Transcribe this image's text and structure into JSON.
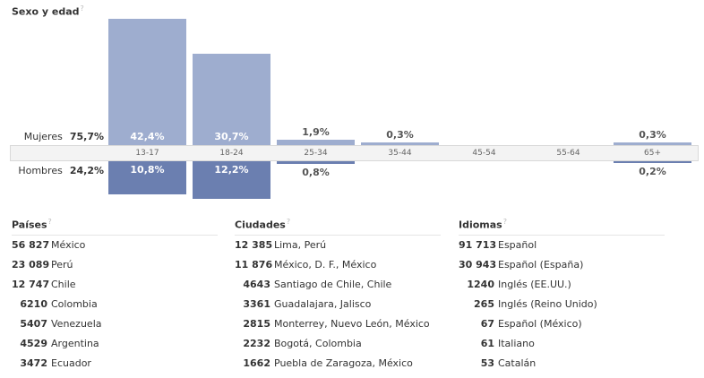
{
  "title": "Sexo y edad",
  "help_mark": "?",
  "women": {
    "label": "Mujeres",
    "pct": "75,7%"
  },
  "men": {
    "label": "Hombres",
    "pct": "24,2%"
  },
  "chart_data": {
    "type": "bar",
    "title": "Sexo y edad",
    "categories": [
      "13-17",
      "18-24",
      "25-34",
      "35-44",
      "45-54",
      "55-64",
      "65+"
    ],
    "series": [
      {
        "name": "Mujeres",
        "values": [
          42.4,
          30.7,
          1.9,
          0.3,
          0,
          0,
          0.3
        ],
        "labels": [
          "42,4%",
          "30,7%",
          "1,9%",
          "0,3%",
          "",
          "",
          "0,3%"
        ]
      },
      {
        "name": "Hombres",
        "values": [
          10.8,
          12.2,
          0.8,
          0,
          0,
          0,
          0.2
        ],
        "labels": [
          "10,8%",
          "12,2%",
          "0,8%",
          "",
          "",
          "",
          "0,2%"
        ]
      }
    ],
    "colors": {
      "women": "#9eadcf",
      "men": "#6b7fb0"
    }
  },
  "countries": {
    "header": "Países",
    "rows": [
      {
        "count": "56 827",
        "name": "México"
      },
      {
        "count": "23 089",
        "name": "Perú"
      },
      {
        "count": "12 747",
        "name": "Chile"
      },
      {
        "count": "6210",
        "name": "Colombia"
      },
      {
        "count": "5407",
        "name": "Venezuela"
      },
      {
        "count": "4529",
        "name": "Argentina"
      },
      {
        "count": "3472",
        "name": "Ecuador"
      }
    ]
  },
  "cities": {
    "header": "Ciudades",
    "rows": [
      {
        "count": "12 385",
        "name": "Lima, Perú"
      },
      {
        "count": "11 876",
        "name": "México, D. F., México"
      },
      {
        "count": "4643",
        "name": "Santiago de Chile, Chile"
      },
      {
        "count": "3361",
        "name": "Guadalajara, Jalisco"
      },
      {
        "count": "2815",
        "name": "Monterrey, Nuevo León, México"
      },
      {
        "count": "2232",
        "name": "Bogotá, Colombia"
      },
      {
        "count": "1662",
        "name": "Puebla de Zaragoza, México"
      }
    ]
  },
  "languages": {
    "header": "Idiomas",
    "rows": [
      {
        "count": "91 713",
        "name": "Español"
      },
      {
        "count": "30 943",
        "name": "Español (España)"
      },
      {
        "count": "1240",
        "name": "Inglés (EE.UU.)"
      },
      {
        "count": "265",
        "name": "Inglés (Reino Unido)"
      },
      {
        "count": "67",
        "name": "Español (México)"
      },
      {
        "count": "61",
        "name": "Italiano"
      },
      {
        "count": "53",
        "name": "Catalán"
      }
    ]
  }
}
